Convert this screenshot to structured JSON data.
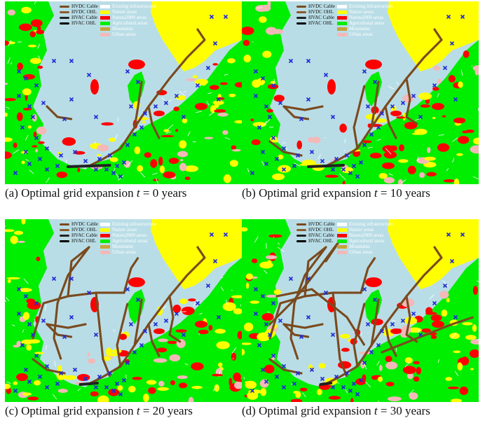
{
  "colors": {
    "sea": "#b9dde6",
    "existing_infrastructure": "#ffffff",
    "nature_areas": "#ffff00",
    "natura2000_areas": "#ff0000",
    "agricultural_areas": "#00ee00",
    "mountains": "#c8a23c",
    "urban_areas": "#f4b8b8",
    "hvdc_cable": "#7a4a1e",
    "hvdc_ohl": "#8b5a2b",
    "hvac_cable": "#222222",
    "hvac_ohl": "#000000",
    "node_marker": "#1f2bd6"
  },
  "legend": {
    "line_types": [
      "HVDC Cable",
      "HVDC OHL",
      "HVAC Cable",
      "HVAC OHL"
    ],
    "areas": [
      "Existing infrastructure",
      "Nature areas",
      "Natura2000 areas",
      "Agricultural areas",
      "Mountains",
      "Urban areas"
    ]
  },
  "panels": [
    {
      "label": "(a) Optimal grid expansion",
      "var": "t",
      "eq": "=",
      "value": "0",
      "unit": "years",
      "expansion_level": 0
    },
    {
      "label": "(b) Optimal grid expansion",
      "var": "t",
      "eq": "=",
      "value": "10",
      "unit": "years",
      "expansion_level": 1
    },
    {
      "label": "(c) Optimal grid expansion",
      "var": "t",
      "eq": "=",
      "value": "20",
      "unit": "years",
      "expansion_level": 2
    },
    {
      "label": "(d) Optimal grid expansion",
      "var": "t",
      "eq": "=",
      "value": "30",
      "unit": "years",
      "expansion_level": 3
    }
  ]
}
